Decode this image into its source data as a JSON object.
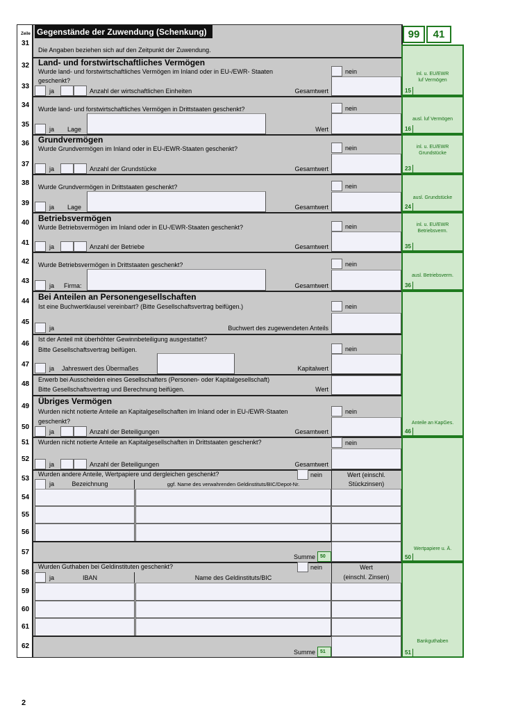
{
  "header": {
    "zeile": "Zeile",
    "title": "Gegenstände der Zuwendung (Schenkung)",
    "code1": "99",
    "code2": "41",
    "note": "Die Angaben beziehen sich auf den Zeitpunkt der Zuwendung."
  },
  "lines": [
    "31",
    "32",
    "33",
    "34",
    "35",
    "36",
    "37",
    "38",
    "39",
    "40",
    "41",
    "42",
    "43",
    "44",
    "45",
    "46",
    "47",
    "48",
    "49",
    "50",
    "51",
    "52",
    "53",
    "54",
    "55",
    "56",
    "57",
    "58",
    "59",
    "60",
    "61",
    "62"
  ],
  "common": {
    "ja": "ja",
    "nein": "nein",
    "lage": "Lage",
    "wert": "Wert",
    "gesamtwert": "Gesamtwert",
    "firma": "Firma:",
    "summe": "Summe"
  },
  "s32": {
    "heading": "Land- und forstwirtschaftliches Vermögen",
    "q1": "Wurde land- und forstwirtschaftliches Vermögen im Inland oder in EU-/EWR- Staaten",
    "q2": "geschenkt?",
    "anzahl": "Anzahl der wirtschaftlichen Einheiten"
  },
  "s34": {
    "q": "Wurde land- und forstwirtschaftliches Vermögen in Drittstaaten geschenkt?"
  },
  "s36": {
    "heading": "Grundvermögen",
    "q": "Wurde Grundvermögen im Inland oder in EU-/EWR-Staaten geschenkt?",
    "anzahl": "Anzahl der Grundstücke"
  },
  "s38": {
    "q": "Wurde Grundvermögen in Drittstaaten geschenkt?"
  },
  "s40": {
    "heading": "Betriebsvermögen",
    "q": "Wurde Betriebsvermögen im Inland oder in EU-/EWR-Staaten geschenkt?",
    "anzahl": "Anzahl der Betriebe"
  },
  "s42": {
    "q": "Wurde Betriebsvermögen in Drittstaaten geschenkt?"
  },
  "s44": {
    "heading": "Bei Anteilen an Personengesellschaften",
    "q": "Ist eine Buchwertklausel vereinbart? (Bitte Gesellschaftsvertrag beifügen.)",
    "buchwert": "Buchwert des zugewendeten Anteils"
  },
  "s46": {
    "q1": "Ist der Anteil mit überhöhter Gewinnbeteiligung ausgestattet?",
    "q2": "Bitte Gesellschaftsvertrag beifügen.",
    "jahreswert": "Jahreswert des Übermaßes",
    "kapitalwert": "Kapitalwert"
  },
  "s48": {
    "q1": "Erwerb bei Ausscheiden eines Gesellschafters (Personen- oder Kapitalgesellschaft)",
    "q2": "Bitte Gesellschaftsvertrag und Berechnung beifügen."
  },
  "s49": {
    "heading": "Übriges Vermögen",
    "q1": "Wurden nicht notierte Anteile an Kapitalgesellschaften im Inland oder in EU-/EWR-Staaten",
    "q2": "geschenkt?",
    "anzahl": "Anzahl der Beteiligungen"
  },
  "s51": {
    "q": "Wurden nicht notierte Anteile an Kapitalgesellschaften in Drittstaaten geschenkt?",
    "anzahl": "Anzahl der Beteiligungen"
  },
  "s53": {
    "q": "Wurden andere Anteile, Wertpapiere und dergleichen geschenkt?",
    "col1": "Bezeichnung",
    "col2": "ggf. Name des verwahrenden Geldinstituts/BIC/Depot-Nr.",
    "col3a": "Wert (einschl.",
    "col3b": "Stückzinsen)",
    "summe_code": "50"
  },
  "s58": {
    "q": "Wurden Guthaben bei Geldinstituten geschenkt?",
    "col1": "IBAN",
    "col2": "Name des Geldinstituts/BIC",
    "col3a": "Wert",
    "col3b": "(einschl. Zinsen)",
    "summe_code": "51"
  },
  "side": [
    {
      "l1": "inl. u. EU/EWR",
      "l2": "luf Vermögen",
      "code": "15"
    },
    {
      "l1": "ausl. luf Vermögen",
      "l2": "",
      "code": "16"
    },
    {
      "l1": "inl. u. EU/EWR",
      "l2": "Grundstücke",
      "code": "23"
    },
    {
      "l1": "ausl. Grundstücke",
      "l2": "",
      "code": "24"
    },
    {
      "l1": "inl. u. EU/EWR",
      "l2": "Betriebsverm.",
      "code": "35"
    },
    {
      "l1": "ausl. Betriebsverm.",
      "l2": "",
      "code": "36"
    },
    {
      "l1": "Anteile an KapGes.",
      "l2": "",
      "code": "46"
    },
    {
      "l1": "Wertpapiere u. Ä.",
      "l2": "",
      "code": "50"
    },
    {
      "l1": "Bankguthaben",
      "l2": "",
      "code": "51"
    }
  ],
  "page_number": "2",
  "colors": {
    "gray": "#c9c9c9",
    "green_fill": "#d1e9cd",
    "green_border": "#1f7a1f",
    "input": "#f1f1f9"
  }
}
